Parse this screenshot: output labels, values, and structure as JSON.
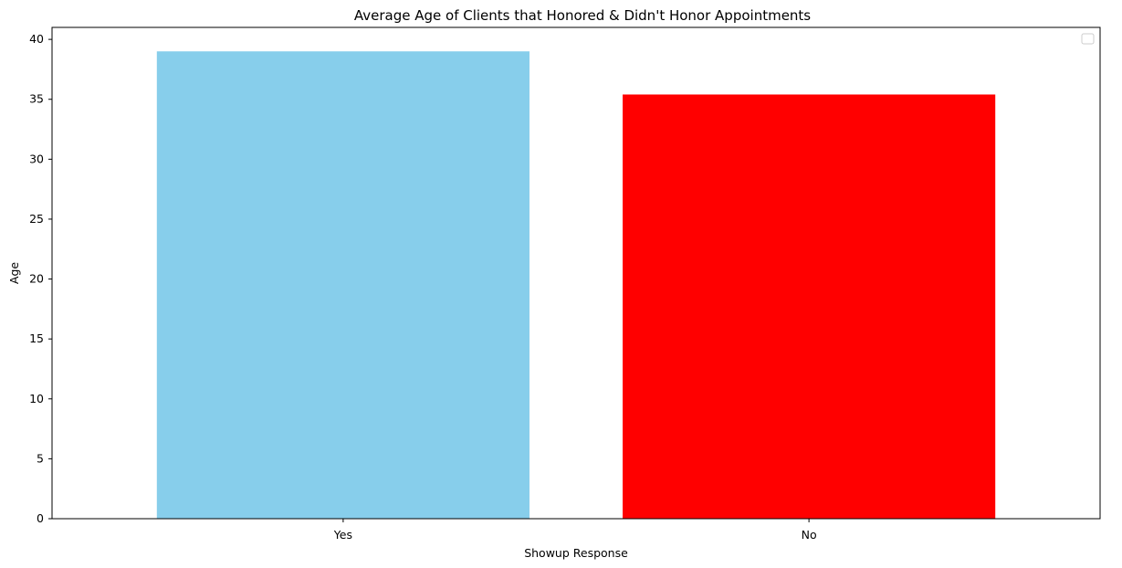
{
  "chart_data": {
    "type": "bar",
    "title": "Average Age of Clients that Honored & Didn't Honor Appointments",
    "xlabel": "Showup Response",
    "ylabel": "Age",
    "categories": [
      "Yes",
      "No"
    ],
    "values": [
      39.0,
      35.4
    ],
    "colors": [
      "#87ceeb",
      "#ff0000"
    ],
    "ylim": [
      0,
      41
    ],
    "yticks": [
      0,
      5,
      10,
      15,
      20,
      25,
      30,
      35,
      40
    ],
    "grid": false,
    "legend": "top-right"
  }
}
